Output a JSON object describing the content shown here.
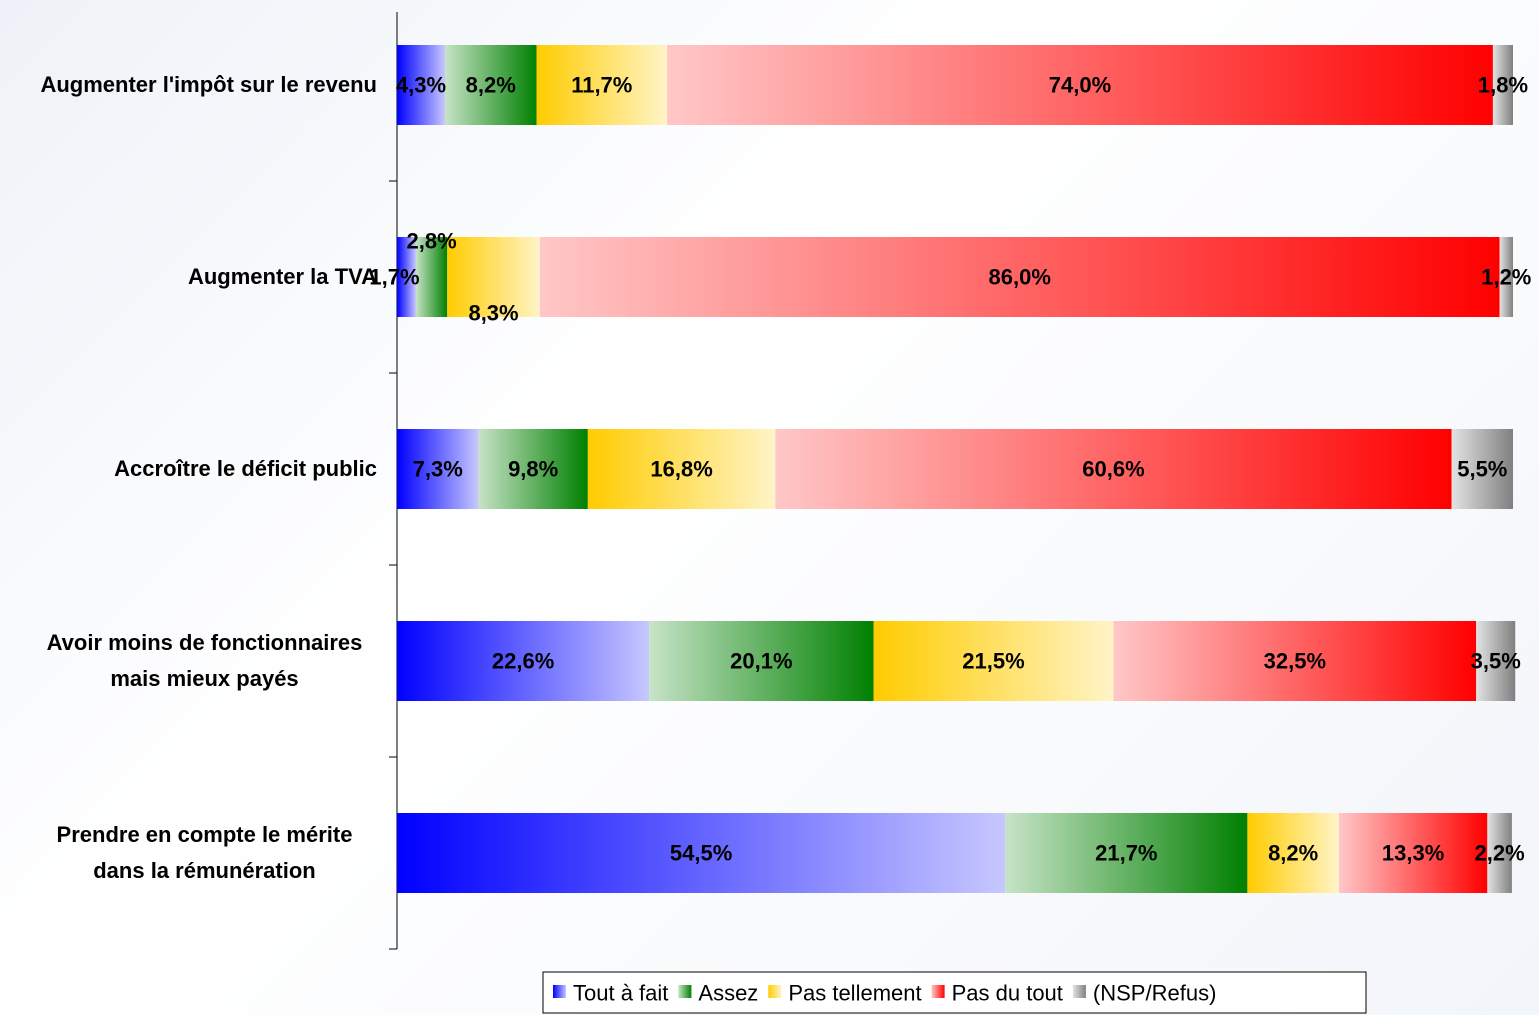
{
  "chart_data": {
    "type": "stacked-bar-horizontal",
    "categories": [
      "Augmenter l'impôt sur le revenu",
      "Augmenter la TVA",
      "Accroître le déficit public",
      "Avoir moins de fonctionnaires mais mieux payés",
      "Prendre en compte le mérite dans la rémunération"
    ],
    "series": [
      {
        "name": "Tout à fait",
        "color": "#0000ff",
        "values": [
          4.3,
          1.7,
          7.3,
          22.6,
          54.5
        ],
        "value_labels": [
          "4,3%",
          "1,7%",
          "7,3%",
          "22,6%",
          "54,5%"
        ]
      },
      {
        "name": "Assez",
        "color": "#008000",
        "values": [
          8.2,
          2.8,
          9.8,
          20.1,
          21.7
        ],
        "value_labels": [
          "8,2%",
          "2,8%",
          "9,8%",
          "20,1%",
          "21,7%"
        ]
      },
      {
        "name": "Pas tellement",
        "color": "#ffcc00",
        "values": [
          11.7,
          8.3,
          16.8,
          21.5,
          8.2
        ],
        "value_labels": [
          "11,7%",
          "8,3%",
          "16,8%",
          "21,5%",
          "8,2%"
        ]
      },
      {
        "name": "Pas du tout",
        "color": "#ff0000",
        "values": [
          74.0,
          86.0,
          60.6,
          32.5,
          13.3
        ],
        "value_labels": [
          "74,0%",
          "86,0%",
          "60,6%",
          "32,5%",
          "13,3%"
        ]
      },
      {
        "name": "(NSP/Refus)",
        "color": "#808080",
        "values": [
          1.8,
          1.2,
          5.5,
          3.5,
          2.2
        ],
        "value_labels": [
          "1,8%",
          "1,2%",
          "5,5%",
          "3,5%",
          "2,2%"
        ]
      }
    ],
    "xlim": [
      0,
      100
    ],
    "legend": "bottom"
  }
}
